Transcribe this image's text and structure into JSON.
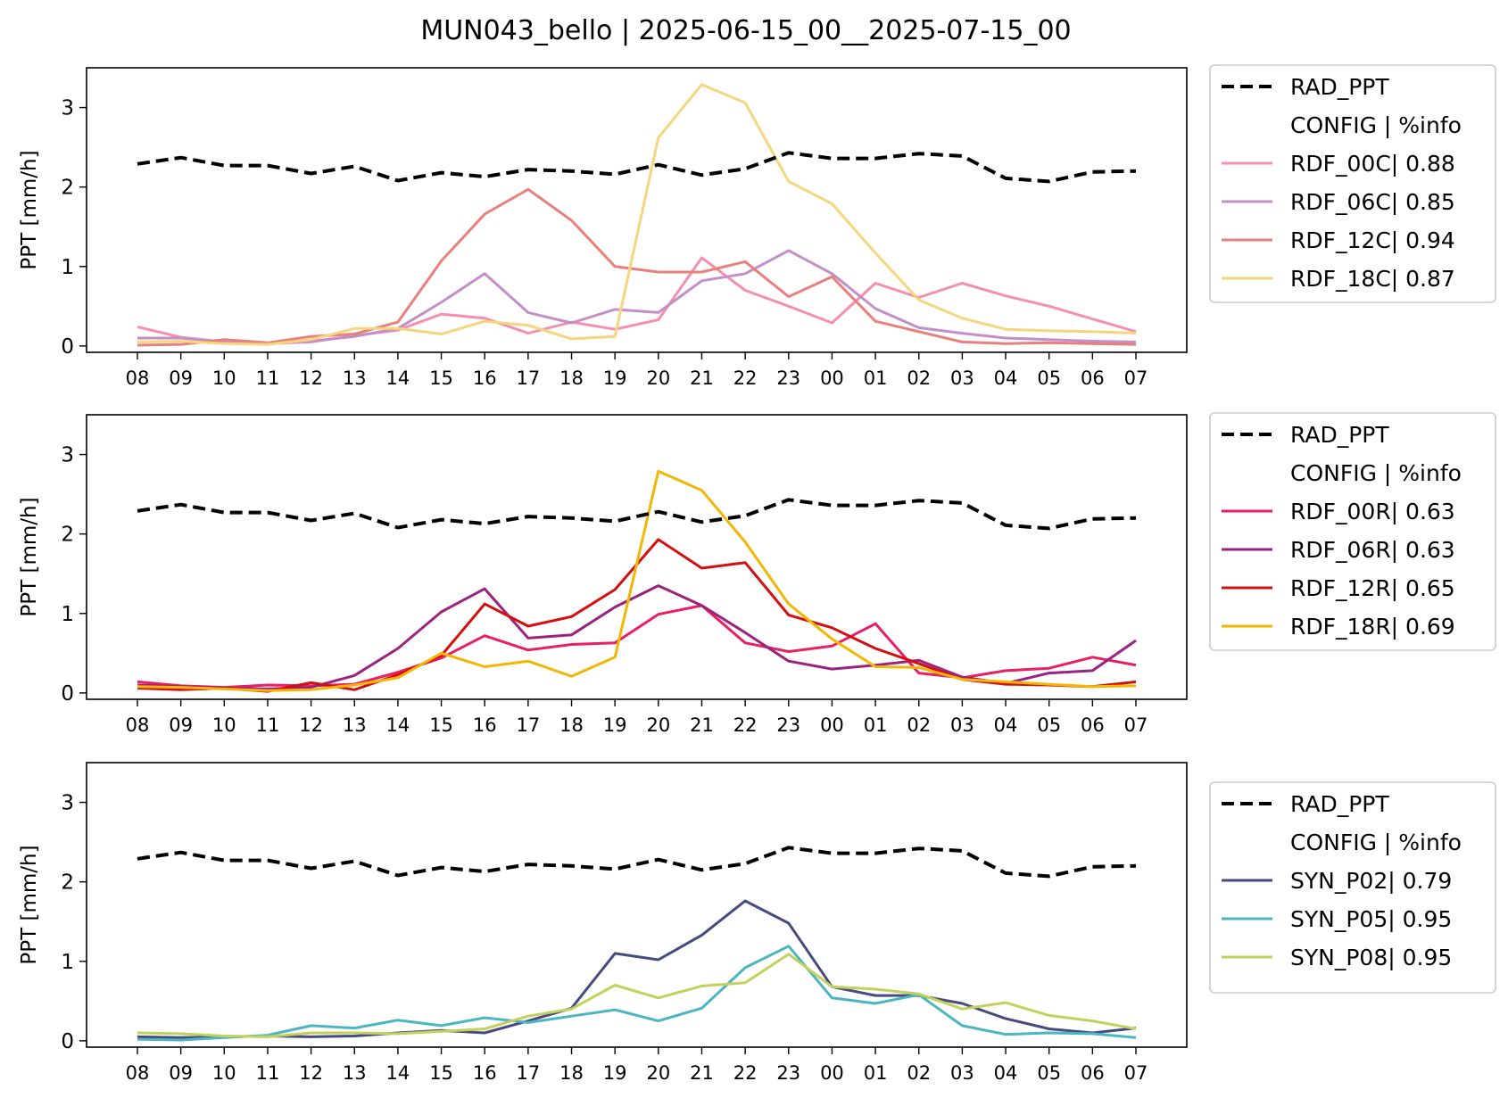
{
  "title": "MUN043_bello | 2025-06-15_00__2025-07-15_00",
  "chart_data": [
    {
      "type": "line",
      "ylabel": "PPT [mm/h]",
      "ylim": [
        -0.08,
        3.5
      ],
      "yticks": [
        0,
        1,
        2,
        3
      ],
      "categories": [
        "08",
        "09",
        "10",
        "11",
        "12",
        "13",
        "14",
        "15",
        "16",
        "17",
        "18",
        "19",
        "20",
        "21",
        "22",
        "23",
        "00",
        "01",
        "02",
        "03",
        "04",
        "05",
        "06",
        "07"
      ],
      "legend_header": {
        "config": "CONFIG",
        "info": "| %info"
      },
      "legend_position": "outside-right",
      "series": [
        {
          "name": "RAD_PPT",
          "color": "#000000",
          "dashed": true,
          "values": [
            2.29,
            2.37,
            2.27,
            2.27,
            2.17,
            2.26,
            2.08,
            2.18,
            2.13,
            2.22,
            2.2,
            2.16,
            2.28,
            2.15,
            2.23,
            2.43,
            2.36,
            2.36,
            2.42,
            2.39,
            2.11,
            2.07,
            2.19,
            2.2
          ]
        },
        {
          "name": "RDF_00C",
          "info": "0.88",
          "color": "#f48fb1",
          "values": [
            0.24,
            0.11,
            0.05,
            0.03,
            0.05,
            0.13,
            0.2,
            0.4,
            0.35,
            0.16,
            0.3,
            0.21,
            0.33,
            1.11,
            0.7,
            0.5,
            0.29,
            0.79,
            0.61,
            0.79,
            0.63,
            0.5,
            0.34,
            0.18
          ]
        },
        {
          "name": "RDF_06C",
          "info": "0.85",
          "color": "#c38fc9",
          "values": [
            0.1,
            0.1,
            0.05,
            0.03,
            0.06,
            0.12,
            0.22,
            0.55,
            0.91,
            0.42,
            0.29,
            0.46,
            0.42,
            0.82,
            0.91,
            1.2,
            0.91,
            0.47,
            0.23,
            0.16,
            0.1,
            0.08,
            0.06,
            0.05
          ]
        },
        {
          "name": "RDF_12C",
          "info": "0.94",
          "color": "#e8807c",
          "values": [
            0.01,
            0.02,
            0.08,
            0.04,
            0.12,
            0.15,
            0.3,
            1.07,
            1.66,
            1.97,
            1.58,
            1.0,
            0.93,
            0.93,
            1.06,
            0.62,
            0.87,
            0.31,
            0.18,
            0.05,
            0.03,
            0.04,
            0.03,
            0.02
          ]
        },
        {
          "name": "RDF_18C",
          "info": "0.87",
          "color": "#f5d67e",
          "values": [
            0.05,
            0.06,
            0.03,
            0.02,
            0.08,
            0.22,
            0.22,
            0.15,
            0.31,
            0.26,
            0.09,
            0.12,
            2.62,
            3.29,
            3.06,
            2.07,
            1.79,
            1.17,
            0.58,
            0.35,
            0.21,
            0.19,
            0.18,
            0.16
          ]
        }
      ]
    },
    {
      "type": "line",
      "ylabel": "PPT [mm/h]",
      "ylim": [
        -0.08,
        3.5
      ],
      "yticks": [
        0,
        1,
        2,
        3
      ],
      "categories": [
        "08",
        "09",
        "10",
        "11",
        "12",
        "13",
        "14",
        "15",
        "16",
        "17",
        "18",
        "19",
        "20",
        "21",
        "22",
        "23",
        "00",
        "01",
        "02",
        "03",
        "04",
        "05",
        "06",
        "07"
      ],
      "legend_header": {
        "config": "CONFIG",
        "info": "| %info"
      },
      "legend_position": "outside-right",
      "series": [
        {
          "name": "RAD_PPT",
          "color": "#000000",
          "dashed": true,
          "values": [
            2.29,
            2.37,
            2.27,
            2.27,
            2.17,
            2.26,
            2.08,
            2.18,
            2.13,
            2.22,
            2.2,
            2.16,
            2.28,
            2.15,
            2.23,
            2.43,
            2.36,
            2.36,
            2.42,
            2.39,
            2.11,
            2.07,
            2.19,
            2.2
          ]
        },
        {
          "name": "RDF_00R",
          "info": "0.63",
          "color": "#e91e63",
          "values": [
            0.14,
            0.09,
            0.07,
            0.1,
            0.09,
            0.11,
            0.26,
            0.44,
            0.72,
            0.54,
            0.61,
            0.63,
            0.99,
            1.1,
            0.63,
            0.52,
            0.59,
            0.87,
            0.25,
            0.19,
            0.28,
            0.31,
            0.45,
            0.35
          ]
        },
        {
          "name": "RDF_06R",
          "info": "0.63",
          "color": "#9b2380",
          "values": [
            0.1,
            0.08,
            0.06,
            0.05,
            0.07,
            0.22,
            0.56,
            1.02,
            1.31,
            0.69,
            0.73,
            1.08,
            1.35,
            1.1,
            0.76,
            0.4,
            0.3,
            0.35,
            0.41,
            0.2,
            0.12,
            0.25,
            0.28,
            0.66
          ]
        },
        {
          "name": "RDF_12R",
          "info": "0.65",
          "color": "#d40f0f",
          "values": [
            0.06,
            0.04,
            0.06,
            0.02,
            0.13,
            0.04,
            0.23,
            0.47,
            1.12,
            0.84,
            0.96,
            1.3,
            1.93,
            1.57,
            1.64,
            0.98,
            0.82,
            0.56,
            0.37,
            0.17,
            0.11,
            0.1,
            0.08,
            0.14
          ]
        },
        {
          "name": "RDF_18R",
          "info": "0.69",
          "color": "#f2b705",
          "values": [
            0.08,
            0.07,
            0.05,
            0.03,
            0.04,
            0.1,
            0.19,
            0.5,
            0.33,
            0.4,
            0.21,
            0.45,
            2.79,
            2.55,
            1.9,
            1.12,
            0.68,
            0.33,
            0.32,
            0.17,
            0.14,
            0.11,
            0.08,
            0.09
          ]
        }
      ]
    },
    {
      "type": "line",
      "ylabel": "PPT [mm/h]",
      "ylim": [
        -0.08,
        3.5
      ],
      "yticks": [
        0,
        1,
        2,
        3
      ],
      "categories": [
        "08",
        "09",
        "10",
        "11",
        "12",
        "13",
        "14",
        "15",
        "16",
        "17",
        "18",
        "19",
        "20",
        "21",
        "22",
        "23",
        "00",
        "01",
        "02",
        "03",
        "04",
        "05",
        "06",
        "07"
      ],
      "legend_header": {
        "config": "CONFIG",
        "info": "| %info"
      },
      "legend_position": "outside-right",
      "series": [
        {
          "name": "RAD_PPT",
          "color": "#000000",
          "dashed": true,
          "values": [
            2.29,
            2.37,
            2.27,
            2.27,
            2.17,
            2.26,
            2.08,
            2.18,
            2.13,
            2.22,
            2.2,
            2.16,
            2.28,
            2.15,
            2.23,
            2.43,
            2.36,
            2.36,
            2.42,
            2.39,
            2.11,
            2.07,
            2.19,
            2.2
          ]
        },
        {
          "name": "SYN_P02",
          "info": "0.79",
          "color": "#474a7e",
          "values": [
            0.05,
            0.04,
            0.05,
            0.06,
            0.05,
            0.06,
            0.1,
            0.13,
            0.1,
            0.25,
            0.41,
            1.1,
            1.02,
            1.33,
            1.76,
            1.48,
            0.68,
            0.57,
            0.57,
            0.47,
            0.28,
            0.15,
            0.1,
            0.16
          ]
        },
        {
          "name": "SYN_P05",
          "info": "0.95",
          "color": "#4bb5c1",
          "values": [
            0.02,
            0.01,
            0.04,
            0.07,
            0.19,
            0.16,
            0.26,
            0.19,
            0.29,
            0.23,
            0.31,
            0.39,
            0.25,
            0.41,
            0.92,
            1.19,
            0.54,
            0.47,
            0.58,
            0.19,
            0.08,
            0.1,
            0.09,
            0.04
          ]
        },
        {
          "name": "SYN_P08",
          "info": "0.95",
          "color": "#c2d05c",
          "values": [
            0.1,
            0.09,
            0.06,
            0.05,
            0.1,
            0.1,
            0.09,
            0.12,
            0.15,
            0.31,
            0.4,
            0.7,
            0.54,
            0.69,
            0.73,
            1.09,
            0.68,
            0.65,
            0.59,
            0.4,
            0.48,
            0.32,
            0.25,
            0.15
          ]
        }
      ]
    }
  ]
}
